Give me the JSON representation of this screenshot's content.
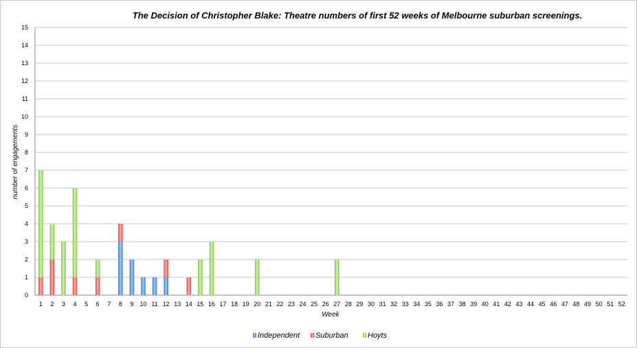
{
  "chart_data": {
    "type": "bar",
    "stacked": true,
    "title": "The Decision of Christopher Blake: Theatre numbers of first 52 weeks of Melbourne suburban screenings.",
    "xlabel": "Week",
    "ylabel": "number of engagements",
    "ylim": [
      0,
      15
    ],
    "grid": true,
    "legend_position": "bottom",
    "categories": [
      "1",
      "2",
      "3",
      "4",
      "5",
      "6",
      "7",
      "8",
      "9",
      "10",
      "11",
      "12",
      "13",
      "14",
      "15",
      "16",
      "17",
      "18",
      "19",
      "20",
      "21",
      "22",
      "23",
      "24",
      "25",
      "26",
      "27",
      "28",
      "29",
      "30",
      "31",
      "32",
      "33",
      "34",
      "35",
      "36",
      "37",
      "38",
      "39",
      "40",
      "41",
      "42",
      "43",
      "44",
      "45",
      "46",
      "47",
      "48",
      "49",
      "50",
      "51",
      "52"
    ],
    "series": [
      {
        "name": "Independent",
        "color": "#4a90d9",
        "values": [
          0,
          0,
          0,
          0,
          0,
          0,
          0,
          3,
          2,
          1,
          1,
          1,
          0,
          0,
          0,
          0,
          0,
          0,
          0,
          0,
          0,
          0,
          0,
          0,
          0,
          0,
          0,
          0,
          0,
          0,
          0,
          0,
          0,
          0,
          0,
          0,
          0,
          0,
          0,
          0,
          0,
          0,
          0,
          0,
          0,
          0,
          0,
          0,
          0,
          0,
          0,
          0
        ]
      },
      {
        "name": "Suburban",
        "color": "#e8534f",
        "values": [
          1,
          2,
          0,
          1,
          0,
          1,
          0,
          1,
          0,
          0,
          0,
          1,
          0,
          1,
          0,
          0,
          0,
          0,
          0,
          0,
          0,
          0,
          0,
          0,
          0,
          0,
          0,
          0,
          0,
          0,
          0,
          0,
          0,
          0,
          0,
          0,
          0,
          0,
          0,
          0,
          0,
          0,
          0,
          0,
          0,
          0,
          0,
          0,
          0,
          0,
          0,
          0
        ]
      },
      {
        "name": "Hoyts",
        "color": "#7cc63a",
        "values": [
          6,
          2,
          3,
          5,
          0,
          1,
          0,
          0,
          0,
          0,
          0,
          0,
          0,
          0,
          2,
          3,
          0,
          0,
          0,
          2,
          0,
          0,
          0,
          0,
          0,
          0,
          2,
          0,
          0,
          0,
          0,
          0,
          0,
          0,
          0,
          0,
          0,
          0,
          0,
          0,
          0,
          0,
          0,
          0,
          0,
          0,
          0,
          0,
          0,
          0,
          0,
          0
        ]
      }
    ]
  }
}
